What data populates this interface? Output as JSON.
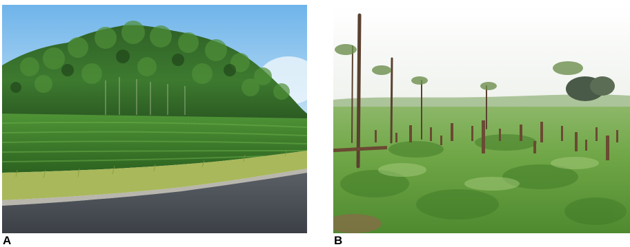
{
  "figure": {
    "panels": [
      {
        "label": "A"
      },
      {
        "label": "B"
      }
    ]
  },
  "colors": {
    "sky_a": "#8ec5ee",
    "forest_dark": "#1f4a1c",
    "forest_mid": "#3f7a2e",
    "crop_green": "#3a7a2a",
    "grass_verge": "#a9b85a",
    "road": "#4b5056",
    "sky_b": "#f4f6f2",
    "field_green": "#6fa646",
    "stump_brown": "#6a4a32"
  }
}
